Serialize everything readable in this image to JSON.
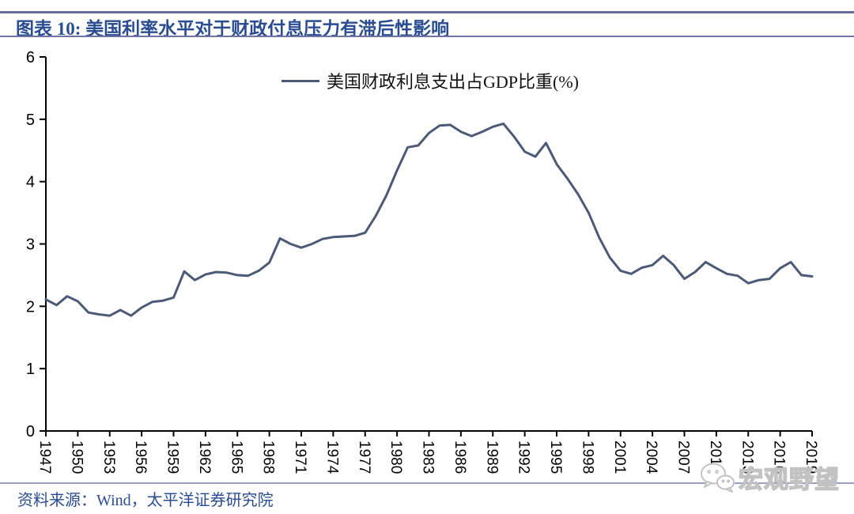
{
  "header": {
    "title": "图表 10:  美国利率水平对于财政付息压力有滞后性影响"
  },
  "legend": {
    "label": "美国财政利息支出占GDP比重(%)"
  },
  "footer": {
    "source": "资料来源：Wind，太平洋证券研究院"
  },
  "watermark": {
    "text": "宏观野望",
    "icon": "wechat-icon"
  },
  "colors": {
    "line": "#4b5a77",
    "axis": "#000000",
    "title_text": "#2a4d92",
    "title_rule": "#666c9e",
    "footer_rule": "#9a9dc6",
    "watermark_gray": "#c2c2c2"
  },
  "chart_data": {
    "type": "line",
    "title": "美国财政利息支出占GDP比重(%)",
    "xlabel": "",
    "ylabel": "",
    "x_range": [
      1947,
      2019
    ],
    "ylim": [
      0,
      6
    ],
    "yticks": [
      0,
      1,
      2,
      3,
      4,
      5,
      6
    ],
    "xticks": [
      1947,
      1950,
      1953,
      1956,
      1959,
      1962,
      1965,
      1968,
      1971,
      1974,
      1977,
      1980,
      1983,
      1986,
      1989,
      1992,
      1995,
      1998,
      2001,
      2004,
      2007,
      2010,
      2013,
      2016,
      2019
    ],
    "xtick_rotation_deg": 90,
    "grid": false,
    "legend_position": "top-center",
    "x": [
      1947,
      1948,
      1949,
      1950,
      1951,
      1952,
      1953,
      1954,
      1955,
      1956,
      1957,
      1958,
      1959,
      1960,
      1961,
      1962,
      1963,
      1964,
      1965,
      1966,
      1967,
      1968,
      1969,
      1970,
      1971,
      1972,
      1973,
      1974,
      1975,
      1976,
      1977,
      1978,
      1979,
      1980,
      1981,
      1982,
      1983,
      1984,
      1985,
      1986,
      1987,
      1988,
      1989,
      1990,
      1991,
      1992,
      1993,
      1994,
      1995,
      1996,
      1997,
      1998,
      1999,
      2000,
      2001,
      2002,
      2003,
      2004,
      2005,
      2006,
      2007,
      2008,
      2009,
      2010,
      2011,
      2012,
      2013,
      2014,
      2015,
      2016,
      2017,
      2018,
      2019
    ],
    "series": [
      {
        "name": "美国财政利息支出占GDP比重(%)",
        "values": [
          2.11,
          2.02,
          2.16,
          2.08,
          1.9,
          1.87,
          1.85,
          1.94,
          1.85,
          1.98,
          2.07,
          2.09,
          2.14,
          2.56,
          2.42,
          2.51,
          2.55,
          2.54,
          2.5,
          2.49,
          2.57,
          2.7,
          3.09,
          3.0,
          2.94,
          3.0,
          3.08,
          3.11,
          3.12,
          3.13,
          3.18,
          3.45,
          3.78,
          4.18,
          4.55,
          4.58,
          4.78,
          4.9,
          4.91,
          4.8,
          4.73,
          4.8,
          4.88,
          4.93,
          4.72,
          4.48,
          4.4,
          4.62,
          4.28,
          4.05,
          3.8,
          3.5,
          3.1,
          2.78,
          2.57,
          2.52,
          2.62,
          2.66,
          2.81,
          2.66,
          2.44,
          2.55,
          2.71,
          2.61,
          2.52,
          2.49,
          2.37,
          2.42,
          2.44,
          2.61,
          2.71,
          2.5,
          2.48
        ]
      }
    ]
  }
}
